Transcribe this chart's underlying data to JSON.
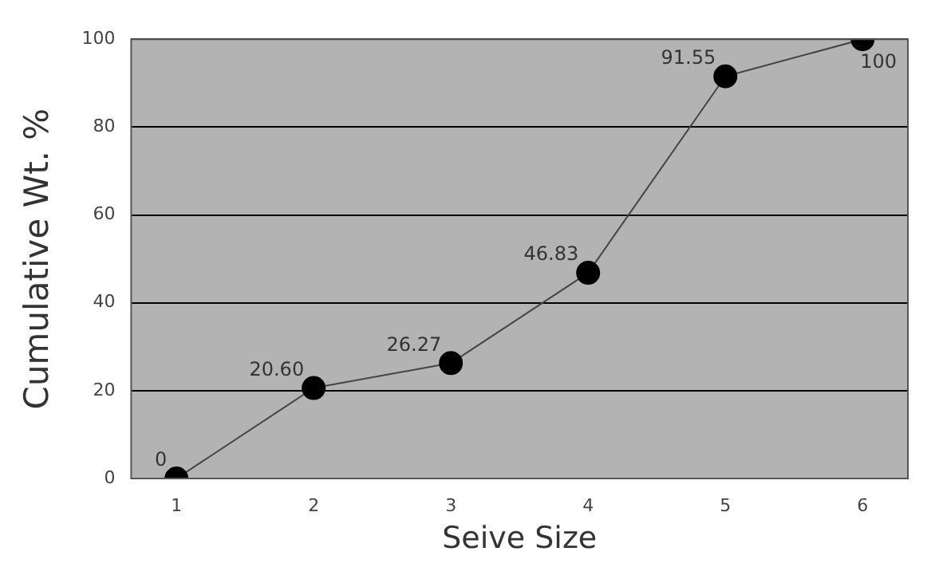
{
  "chart_data": {
    "type": "line",
    "xlabel": "Seive Size",
    "ylabel": "Cumulative Wt. %",
    "x": [
      1,
      2,
      3,
      4,
      5,
      6
    ],
    "values": [
      0,
      20.6,
      26.27,
      46.83,
      91.55,
      100
    ],
    "value_labels": [
      "0",
      "20.60",
      "26.27",
      "46.83",
      "91.55",
      "100"
    ],
    "color": "#000000",
    "xlim": [
      0.67,
      6.33
    ],
    "xticks": [
      1,
      2,
      3,
      4,
      5,
      6
    ],
    "ylim": [
      0,
      100
    ],
    "yticks": [
      0,
      20,
      40,
      60,
      80,
      100
    ],
    "grid": "y",
    "marker": "circle",
    "line_style": "solid",
    "legend": false
  }
}
